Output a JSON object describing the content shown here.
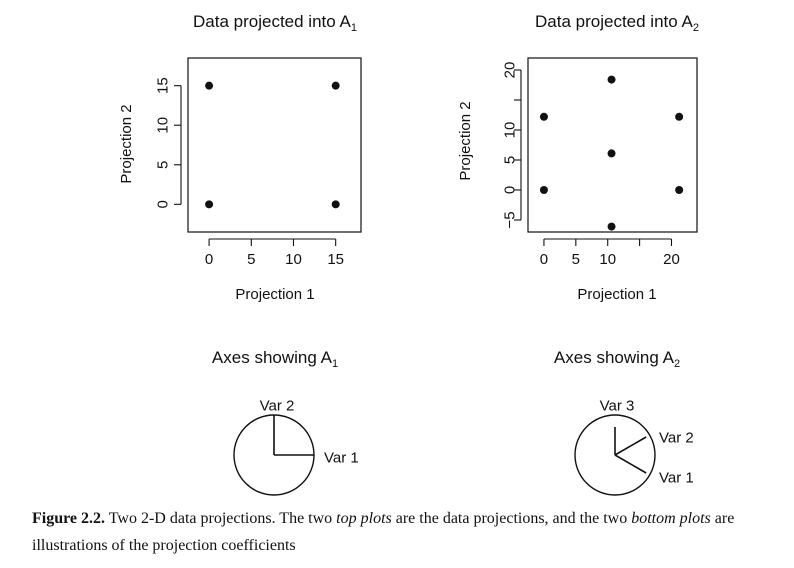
{
  "chart_data": [
    {
      "type": "scatter",
      "title": "Data projected into A",
      "title_sub": "1",
      "xlabel": "Projection 1",
      "ylabel": "Projection 2",
      "xlim": [
        -2.5,
        18
      ],
      "ylim": [
        -3.5,
        18.5
      ],
      "xticks": [
        0,
        5,
        10,
        15
      ],
      "yticks": [
        0,
        5,
        10,
        15
      ],
      "x": [
        0,
        15,
        0,
        15
      ],
      "y": [
        15,
        15,
        0,
        0
      ]
    },
    {
      "type": "scatter",
      "title": "Data projected into A",
      "title_sub": "2",
      "xlabel": "Projection 1",
      "ylabel": "Projection 2",
      "xlim": [
        -2.5,
        24
      ],
      "ylim": [
        -7,
        22
      ],
      "xticks": [
        0,
        5,
        10,
        15,
        20
      ],
      "xtick_labels": [
        "0",
        "5",
        "10",
        "",
        "20"
      ],
      "yticks": [
        -5,
        0,
        5,
        10,
        15,
        20
      ],
      "ytick_labels": [
        "−5",
        "0",
        "5",
        "10",
        "",
        "20"
      ],
      "x": [
        0,
        10.6,
        21.2,
        10.6,
        0,
        21.2,
        10.6
      ],
      "y": [
        12.2,
        18.4,
        12.2,
        6.1,
        0,
        0,
        -6.1
      ]
    },
    {
      "type": "axes_diagram",
      "title": "Axes showing A",
      "title_sub": "1",
      "vectors": [
        {
          "label": "Var 1",
          "angle_deg": 0,
          "length": 1
        },
        {
          "label": "Var 2",
          "angle_deg": 90,
          "length": 1
        }
      ]
    },
    {
      "type": "axes_diagram",
      "title": "Axes showing A",
      "title_sub": "2",
      "vectors": [
        {
          "label": "Var 1",
          "angle_deg": -30,
          "length": 0.9
        },
        {
          "label": "Var 2",
          "angle_deg": 30,
          "length": 0.9
        },
        {
          "label": "Var 3",
          "angle_deg": 90,
          "length": 0.7
        }
      ]
    }
  ],
  "caption": {
    "number": "Figure 2.2.",
    "p1": " Two 2-D data projections. The two ",
    "e1": "top plots",
    "p2": " are the data projections, and the two ",
    "e2": "bottom plots",
    "p3": " are illustrations of the projection coefficients"
  }
}
